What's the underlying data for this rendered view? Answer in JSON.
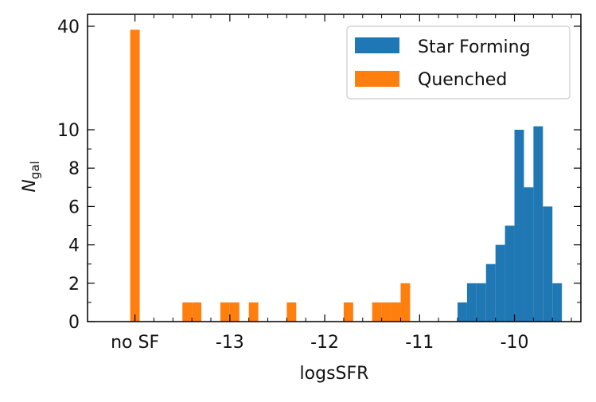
{
  "chart_data": {
    "type": "bar",
    "xlabel": "logsSFR",
    "ylabel": "N",
    "ylabel_subscript": "gal",
    "x_ticks": [
      {
        "value": -14.0,
        "label": "no SF"
      },
      {
        "value": -13.0,
        "label": "-13"
      },
      {
        "value": -12.0,
        "label": "-12"
      },
      {
        "value": -11.0,
        "label": "-11"
      },
      {
        "value": -10.0,
        "label": "-10"
      }
    ],
    "y_ticks": [
      {
        "value": 0,
        "label": "0"
      },
      {
        "value": 2,
        "label": "2"
      },
      {
        "value": 4,
        "label": "4"
      },
      {
        "value": 6,
        "label": "6"
      },
      {
        "value": 8,
        "label": "8"
      },
      {
        "value": 10,
        "label": "10"
      },
      {
        "value": 40,
        "label": "40"
      }
    ],
    "y_scale_note": "broken axis: 0-10 linear, 10-40 compressed",
    "xlim": [
      -14.5,
      -9.3
    ],
    "ylim": [
      0,
      43
    ],
    "bin_width": 0.1,
    "legend_position": "top-right",
    "series": [
      {
        "name": "Star Forming",
        "color": "#1f77b4",
        "bins": [
          {
            "x0": -10.6,
            "count": 1
          },
          {
            "x0": -10.5,
            "count": 2
          },
          {
            "x0": -10.4,
            "count": 2
          },
          {
            "x0": -10.3,
            "count": 3
          },
          {
            "x0": -10.2,
            "count": 4
          },
          {
            "x0": -10.1,
            "count": 5
          },
          {
            "x0": -10.0,
            "count": 10
          },
          {
            "x0": -9.9,
            "count": 7
          },
          {
            "x0": -9.8,
            "count": 11
          },
          {
            "x0": -9.7,
            "count": 6
          },
          {
            "x0": -9.6,
            "count": 2
          }
        ]
      },
      {
        "name": "Quenched",
        "color": "#ff7f0e",
        "bins": [
          {
            "x0": -14.05,
            "count": 39
          },
          {
            "x0": -13.5,
            "count": 1
          },
          {
            "x0": -13.4,
            "count": 1
          },
          {
            "x0": -13.1,
            "count": 1
          },
          {
            "x0": -13.0,
            "count": 1
          },
          {
            "x0": -12.8,
            "count": 1
          },
          {
            "x0": -12.4,
            "count": 1
          },
          {
            "x0": -11.8,
            "count": 1
          },
          {
            "x0": -11.5,
            "count": 1
          },
          {
            "x0": -11.4,
            "count": 1
          },
          {
            "x0": -11.3,
            "count": 1
          },
          {
            "x0": -11.2,
            "count": 2
          }
        ]
      }
    ]
  }
}
